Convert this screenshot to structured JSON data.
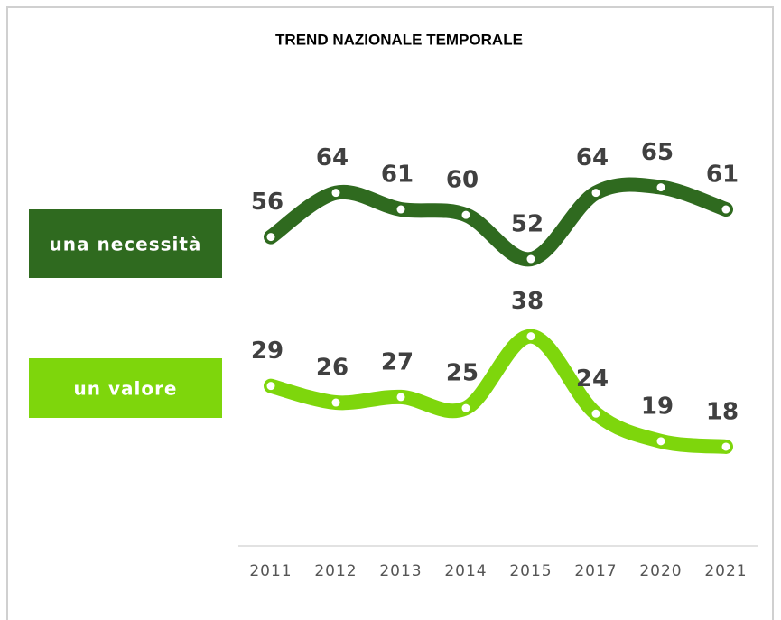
{
  "chart_data": {
    "type": "line",
    "title": "TREND NAZIONALE TEMPORALE",
    "categories": [
      "2011",
      "2012",
      "2013",
      "2014",
      "2015",
      "2017",
      "2020",
      "2021"
    ],
    "series": [
      {
        "name": "una necessità",
        "color": "#2f6a1f",
        "values": [
          56,
          64,
          61,
          60,
          52,
          64,
          65,
          61
        ]
      },
      {
        "name": "un valore",
        "color": "#7ed60c",
        "values": [
          29,
          26,
          27,
          25,
          38,
          24,
          19,
          18
        ]
      }
    ],
    "ylim": [
      0,
      70
    ]
  }
}
